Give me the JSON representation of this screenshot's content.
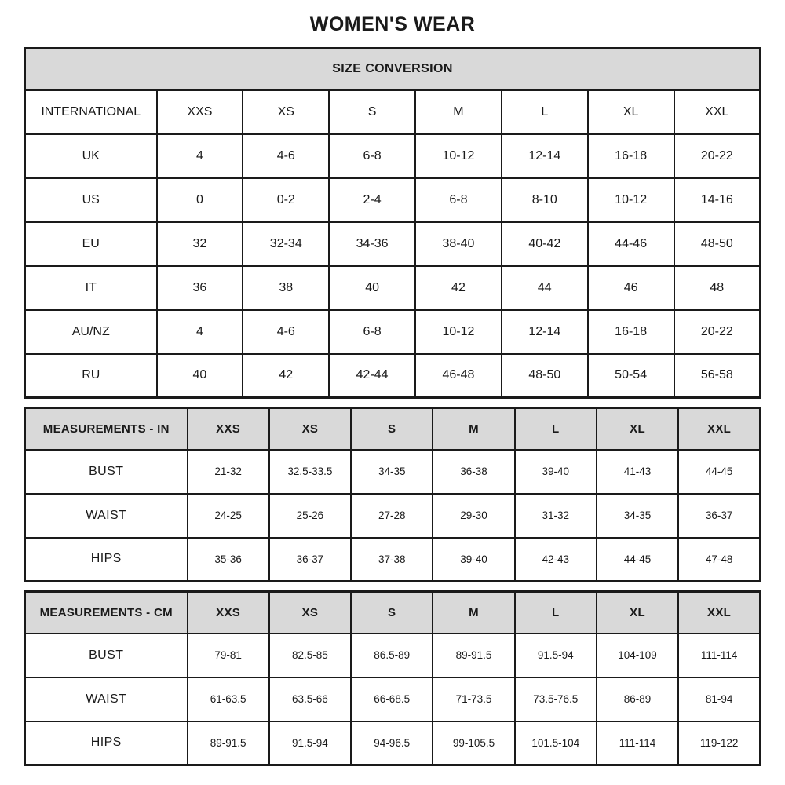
{
  "page": {
    "title": "WOMEN'S WEAR"
  },
  "colors": {
    "background": "#ffffff",
    "header_bg": "#d9d9d9",
    "border": "#1a1a1a",
    "text": "#1a1a1a"
  },
  "chart_data": [
    {
      "type": "table",
      "title": "SIZE CONVERSION",
      "header": [
        "INTERNATIONAL",
        "XXS",
        "XS",
        "S",
        "M",
        "L",
        "XL",
        "XXL"
      ],
      "rows": [
        [
          "UK",
          "4",
          "4-6",
          "6-8",
          "10-12",
          "12-14",
          "16-18",
          "20-22"
        ],
        [
          "US",
          "0",
          "0-2",
          "2-4",
          "6-8",
          "8-10",
          "10-12",
          "14-16"
        ],
        [
          "EU",
          "32",
          "32-34",
          "34-36",
          "38-40",
          "40-42",
          "44-46",
          "48-50"
        ],
        [
          "IT",
          "36",
          "38",
          "40",
          "42",
          "44",
          "46",
          "48"
        ],
        [
          "AU/NZ",
          "4",
          "4-6",
          "6-8",
          "10-12",
          "12-14",
          "16-18",
          "20-22"
        ],
        [
          "RU",
          "40",
          "42",
          "42-44",
          "46-48",
          "48-50",
          "50-54",
          "56-58"
        ]
      ]
    },
    {
      "type": "table",
      "title": "MEASUREMENTS - IN",
      "header": [
        "MEASUREMENTS - IN",
        "XXS",
        "XS",
        "S",
        "M",
        "L",
        "XL",
        "XXL"
      ],
      "rows": [
        [
          "BUST",
          "21-32",
          "32.5-33.5",
          "34-35",
          "36-38",
          "39-40",
          "41-43",
          "44-45"
        ],
        [
          "WAIST",
          "24-25",
          "25-26",
          "27-28",
          "29-30",
          "31-32",
          "34-35",
          "36-37"
        ],
        [
          "HIPS",
          "35-36",
          "36-37",
          "37-38",
          "39-40",
          "42-43",
          "44-45",
          "47-48"
        ]
      ]
    },
    {
      "type": "table",
      "title": "MEASUREMENTS - CM",
      "header": [
        "MEASUREMENTS - CM",
        "XXS",
        "XS",
        "S",
        "M",
        "L",
        "XL",
        "XXL"
      ],
      "rows": [
        [
          "BUST",
          "79-81",
          "82.5-85",
          "86.5-89",
          "89-91.5",
          "91.5-94",
          "104-109",
          "111-114"
        ],
        [
          "WAIST",
          "61-63.5",
          "63.5-66",
          "66-68.5",
          "71-73.5",
          "73.5-76.5",
          "86-89",
          "81-94"
        ],
        [
          "HIPS",
          "89-91.5",
          "91.5-94",
          "94-96.5",
          "99-105.5",
          "101.5-104",
          "111-114",
          "119-122"
        ]
      ]
    }
  ]
}
